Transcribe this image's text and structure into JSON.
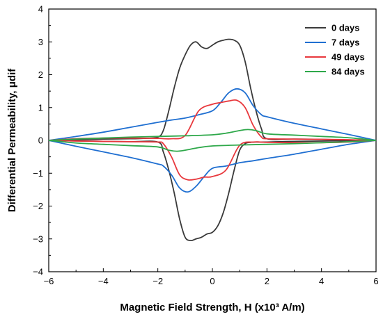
{
  "chart_data": {
    "type": "line",
    "title": "",
    "xlabel": "Magnetic Field Strength, H (x10³ A/m)",
    "ylabel": "Differential Permeability, μdif",
    "xlim": [
      -6,
      6
    ],
    "ylim": [
      -4,
      4
    ],
    "x_ticks": [
      "−6",
      "−4",
      "−2",
      "0",
      "2",
      "4",
      "6"
    ],
    "y_ticks": [
      "4",
      "3",
      "2",
      "1",
      "0",
      "−1",
      "−2",
      "−3",
      "−4"
    ],
    "grid": false,
    "legend_position": "top-right",
    "series": [
      {
        "name": "0 days",
        "color": "#3a3a3a",
        "upper": {
          "x": [
            -6,
            -5,
            -4,
            -3,
            -2.5,
            -2,
            -1.8,
            -1.6,
            -1.4,
            -1.2,
            -1,
            -0.8,
            -0.6,
            -0.4,
            -0.2,
            0,
            0.2,
            0.4,
            0.6,
            0.8,
            1,
            1.2,
            1.4,
            1.6,
            1.8,
            2,
            3,
            4,
            5,
            6
          ],
          "y": [
            0,
            0.02,
            0.04,
            0.05,
            0.06,
            0.1,
            0.3,
            0.9,
            1.6,
            2.2,
            2.6,
            2.9,
            3.0,
            2.85,
            2.8,
            2.9,
            3.0,
            3.05,
            3.08,
            3.05,
            2.9,
            2.4,
            1.6,
            0.9,
            0.35,
            0.05,
            0.04,
            0.03,
            0.01,
            0
          ]
        },
        "lower": {
          "x": [
            -6,
            -5,
            -4,
            -3,
            -2,
            -1.8,
            -1.6,
            -1.4,
            -1.2,
            -1,
            -0.8,
            -0.6,
            -0.4,
            -0.2,
            0,
            0.2,
            0.4,
            0.6,
            0.8,
            1,
            1.2,
            1.4,
            1.6,
            1.8,
            2,
            2.5,
            3,
            4,
            5,
            6
          ],
          "y": [
            0,
            -0.01,
            -0.03,
            -0.04,
            -0.05,
            -0.35,
            -0.9,
            -1.6,
            -2.4,
            -2.95,
            -3.05,
            -3.0,
            -2.95,
            -2.85,
            -2.8,
            -2.6,
            -2.2,
            -1.6,
            -0.9,
            -0.3,
            -0.1,
            -0.06,
            -0.05,
            -0.05,
            -0.05,
            -0.04,
            -0.03,
            -0.02,
            -0.01,
            0
          ]
        }
      },
      {
        "name": "7 days",
        "color": "#1f6fd1",
        "upper": {
          "x": [
            -6,
            -5,
            -4,
            -3,
            -2,
            -1.5,
            -1,
            -0.5,
            0,
            0.3,
            0.6,
            0.9,
            1.2,
            1.5,
            1.8,
            2,
            3,
            4,
            5,
            6
          ],
          "y": [
            0,
            0.12,
            0.25,
            0.4,
            0.55,
            0.62,
            0.68,
            0.78,
            0.9,
            1.15,
            1.45,
            1.57,
            1.45,
            1.05,
            0.78,
            0.72,
            0.52,
            0.35,
            0.18,
            0
          ]
        },
        "lower": {
          "x": [
            -6,
            -5,
            -4,
            -3,
            -2,
            -1.8,
            -1.5,
            -1.2,
            -0.9,
            -0.6,
            -0.3,
            0,
            0.5,
            1,
            1.5,
            2,
            3,
            4,
            5,
            6
          ],
          "y": [
            0,
            -0.18,
            -0.35,
            -0.52,
            -0.72,
            -0.78,
            -1.05,
            -1.45,
            -1.57,
            -1.4,
            -1.1,
            -0.85,
            -0.78,
            -0.68,
            -0.62,
            -0.55,
            -0.42,
            -0.27,
            -0.12,
            0
          ]
        }
      },
      {
        "name": "49 days",
        "color": "#e8383d",
        "upper": {
          "x": [
            -6,
            -5,
            -4,
            -3,
            -2,
            -1.5,
            -1,
            -0.5,
            0,
            0.3,
            0.6,
            0.9,
            1.2,
            1.5,
            1.8,
            2,
            3,
            4,
            5,
            6
          ],
          "y": [
            0,
            0.05,
            0.07,
            0.07,
            0.06,
            0.05,
            0.15,
            0.9,
            1.1,
            1.15,
            1.2,
            1.22,
            1.0,
            0.45,
            0.1,
            0.05,
            0.04,
            0.03,
            0.02,
            0
          ]
        },
        "lower": {
          "x": [
            -6,
            -5,
            -4,
            -3,
            -2,
            -1.8,
            -1.5,
            -1.2,
            -0.9,
            -0.6,
            -0.3,
            0,
            0.5,
            1,
            1.5,
            2,
            3,
            4,
            5,
            6
          ],
          "y": [
            0,
            -0.02,
            -0.03,
            -0.04,
            -0.05,
            -0.1,
            -0.5,
            -1.05,
            -1.2,
            -1.18,
            -1.12,
            -1.1,
            -0.9,
            -0.15,
            -0.05,
            -0.06,
            -0.07,
            -0.07,
            -0.05,
            0
          ]
        }
      },
      {
        "name": "84 days",
        "color": "#2ea84a",
        "upper": {
          "x": [
            -6,
            -5,
            -4,
            -3,
            -2,
            -1,
            0,
            0.5,
            1,
            1.3,
            1.6,
            2,
            3,
            4,
            5,
            6
          ],
          "y": [
            0,
            0.04,
            0.07,
            0.1,
            0.12,
            0.14,
            0.17,
            0.22,
            0.3,
            0.33,
            0.3,
            0.2,
            0.16,
            0.12,
            0.08,
            0
          ]
        },
        "lower": {
          "x": [
            -6,
            -5,
            -4,
            -3,
            -2,
            -1.6,
            -1.3,
            -1,
            -0.5,
            0,
            1,
            2,
            3,
            4,
            5,
            6
          ],
          "y": [
            0,
            -0.08,
            -0.12,
            -0.16,
            -0.2,
            -0.3,
            -0.33,
            -0.3,
            -0.22,
            -0.17,
            -0.14,
            -0.12,
            -0.1,
            -0.07,
            -0.04,
            0
          ]
        }
      }
    ]
  }
}
